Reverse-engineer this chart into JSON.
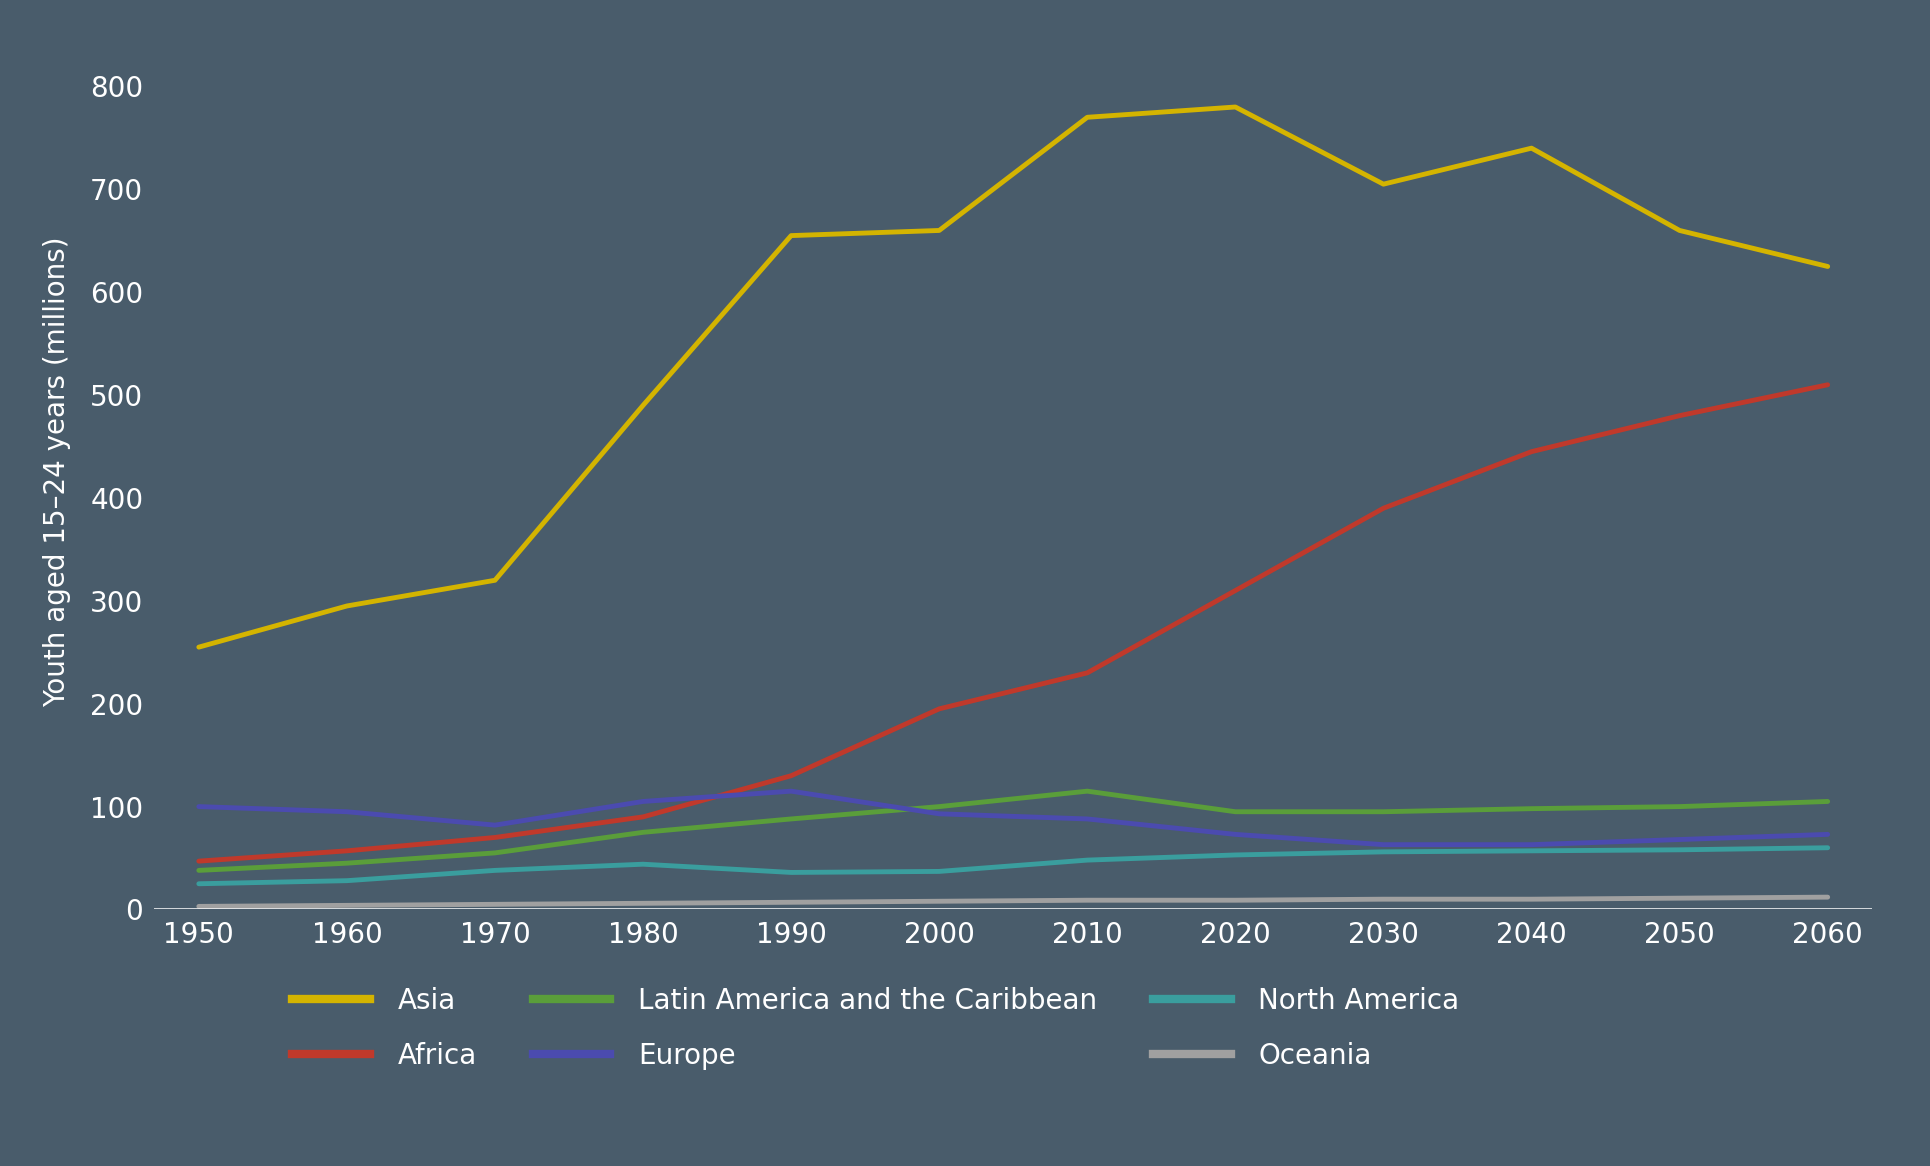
{
  "years": [
    1950,
    1960,
    1970,
    1980,
    1990,
    2000,
    2010,
    2020,
    2030,
    2040,
    2050,
    2060
  ],
  "series": {
    "Asia": {
      "values": [
        255,
        295,
        320,
        490,
        655,
        660,
        770,
        780,
        705,
        740,
        660,
        625
      ],
      "color": "#D4B400",
      "linewidth": 3.5
    },
    "Africa": {
      "values": [
        47,
        57,
        70,
        90,
        130,
        195,
        230,
        310,
        390,
        445,
        480,
        510
      ],
      "color": "#C0392B",
      "linewidth": 3.5
    },
    "Latin America and the Caribbean": {
      "values": [
        38,
        45,
        55,
        75,
        88,
        100,
        115,
        95,
        95,
        98,
        100,
        105
      ],
      "color": "#5A9E3A",
      "linewidth": 3.5
    },
    "Europe": {
      "values": [
        100,
        95,
        82,
        105,
        115,
        93,
        88,
        73,
        63,
        63,
        68,
        73
      ],
      "color": "#4B4BAF",
      "linewidth": 3.5
    },
    "North America": {
      "values": [
        25,
        28,
        38,
        44,
        36,
        37,
        48,
        53,
        56,
        57,
        58,
        60
      ],
      "color": "#3A9E9E",
      "linewidth": 3.5
    },
    "Oceania": {
      "values": [
        3,
        4,
        5,
        6,
        7,
        8,
        9,
        9,
        10,
        10,
        11,
        12
      ],
      "color": "#A0A0A0",
      "linewidth": 3.5
    }
  },
  "ylabel": "Youth aged 15–24 years (millions)",
  "ylim": [
    0,
    850
  ],
  "yticks": [
    0,
    100,
    200,
    300,
    400,
    500,
    600,
    700,
    800
  ],
  "xticks": [
    1950,
    1960,
    1970,
    1980,
    1990,
    2000,
    2010,
    2020,
    2030,
    2040,
    2050,
    2060
  ],
  "background_color": "#495C6B",
  "text_color": "#FFFFFF",
  "axis_label_fontsize": 20,
  "tick_fontsize": 20,
  "legend_fontsize": 20,
  "legend_order": [
    "Asia",
    "Africa",
    "Latin America and the Caribbean",
    "Europe",
    "North America",
    "Oceania"
  ]
}
